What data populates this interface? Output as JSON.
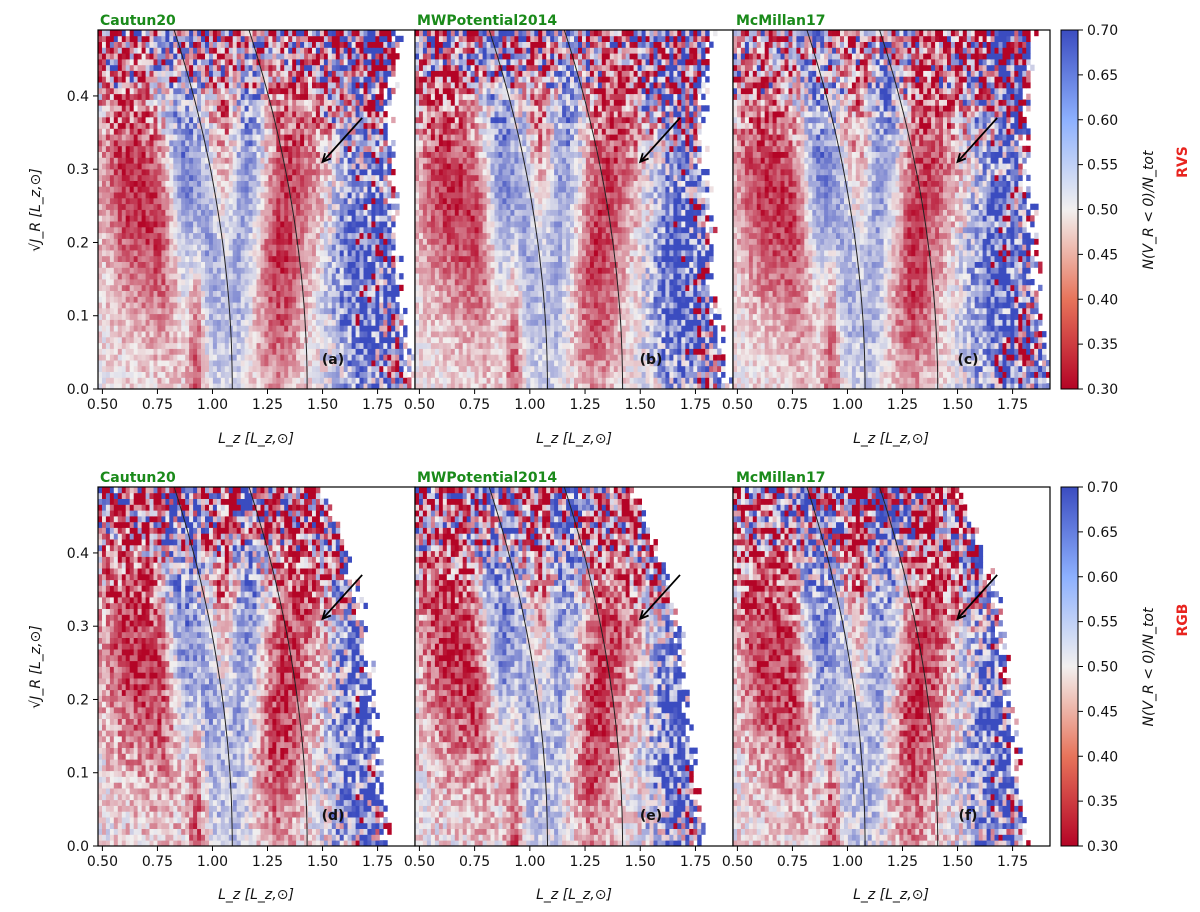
{
  "chart_data": {
    "type": "heatmap",
    "figure_layout": "2 rows x 3 columns",
    "x_axis": {
      "label": "L_z [L_z,⊙]",
      "range": [
        0.48,
        1.92
      ],
      "ticks": [
        "0.50",
        "0.75",
        "1.00",
        "1.25",
        "1.50",
        "1.75"
      ],
      "tick_values": [
        0.5,
        0.75,
        1.0,
        1.25,
        1.5,
        1.75
      ]
    },
    "y_axis": {
      "label": "√J_R [L_z,⊙]",
      "range": [
        0.0,
        0.49
      ],
      "ticks": [
        "0.0",
        "0.1",
        "0.2",
        "0.3",
        "0.4"
      ],
      "tick_values": [
        0.0,
        0.1,
        0.2,
        0.3,
        0.4
      ]
    },
    "colorbar": {
      "label": "N(V_R < 0)/N_tot",
      "range": [
        0.3,
        0.7
      ],
      "ticks": [
        "0.30",
        "0.35",
        "0.40",
        "0.45",
        "0.50",
        "0.55",
        "0.60",
        "0.65",
        "0.70"
      ],
      "tick_values": [
        0.3,
        0.35,
        0.4,
        0.45,
        0.5,
        0.55,
        0.6,
        0.65,
        0.7
      ],
      "colormap": "coolwarm_r (red = low, blue = high)",
      "low_color": "#b40426",
      "mid_color": "#f2f0ef",
      "high_color": "#3b4cc0"
    },
    "rows": [
      {
        "label": "RVS",
        "panels": [
          {
            "title": "Cautun20",
            "tag": "(a)",
            "resonance_curves_x_at_base": [
              1.09,
              1.43
            ]
          },
          {
            "title": "MWPotential2014",
            "tag": "(b)",
            "resonance_curves_x_at_base": [
              1.08,
              1.42
            ]
          },
          {
            "title": "McMillan17",
            "tag": "(c)",
            "resonance_curves_x_at_base": [
              1.08,
              1.41
            ]
          }
        ]
      },
      {
        "label": "RGB",
        "panels": [
          {
            "title": "Cautun20",
            "tag": "(d)",
            "resonance_curves_x_at_base": [
              1.09,
              1.43
            ]
          },
          {
            "title": "MWPotential2014",
            "tag": "(e)",
            "resonance_curves_x_at_base": [
              1.08,
              1.42
            ]
          },
          {
            "title": "McMillan17",
            "tag": "(f)",
            "resonance_curves_x_at_base": [
              1.08,
              1.41
            ]
          }
        ]
      }
    ],
    "arrow": {
      "from": [
        1.68,
        0.37
      ],
      "to": [
        1.5,
        0.31
      ]
    },
    "data_extent": {
      "RVS": [
        1.92,
        1.88,
        1.86,
        1.84,
        1.83,
        1.82,
        1.8,
        1.8,
        1.82,
        1.85
      ],
      "RGB": [
        1.79,
        1.78,
        1.76,
        1.74,
        1.72,
        1.7,
        1.67,
        1.62,
        1.55,
        1.48
      ]
    },
    "features": [
      {
        "lz": 0.62,
        "sqrt_jr": 0.28,
        "width": 0.09,
        "value": 0.34,
        "slope": -1.6
      },
      {
        "lz": 0.78,
        "sqrt_jr": 0.22,
        "width": 0.06,
        "value": 0.38,
        "slope": -1.6
      },
      {
        "lz": 0.95,
        "sqrt_jr": 0.22,
        "width": 0.07,
        "value": 0.64,
        "slope": -2.5
      },
      {
        "lz": 0.93,
        "sqrt_jr": 0.08,
        "width": 0.03,
        "value": 0.33,
        "slope": 0
      },
      {
        "lz": 0.84,
        "sqrt_jr": 0.31,
        "width": 0.06,
        "value": 0.59,
        "slope": -2.0
      },
      {
        "lz": 1.05,
        "sqrt_jr": 0.39,
        "width": 0.05,
        "value": 0.37,
        "slope": 0
      },
      {
        "lz": 1.17,
        "sqrt_jr": 0.34,
        "width": 0.06,
        "value": 0.63,
        "slope": 0
      },
      {
        "lz": 1.12,
        "sqrt_jr": 0.15,
        "width": 0.04,
        "value": 0.56,
        "slope": 0
      },
      {
        "lz": 1.29,
        "sqrt_jr": 0.15,
        "width": 0.08,
        "value": 0.36,
        "slope": 0
      },
      {
        "lz": 1.4,
        "sqrt_jr": 0.36,
        "width": 0.1,
        "value": 0.38,
        "slope": 0
      },
      {
        "lz": 1.68,
        "sqrt_jr": 0.16,
        "width": 0.1,
        "value": 0.68,
        "slope": 0
      }
    ]
  }
}
